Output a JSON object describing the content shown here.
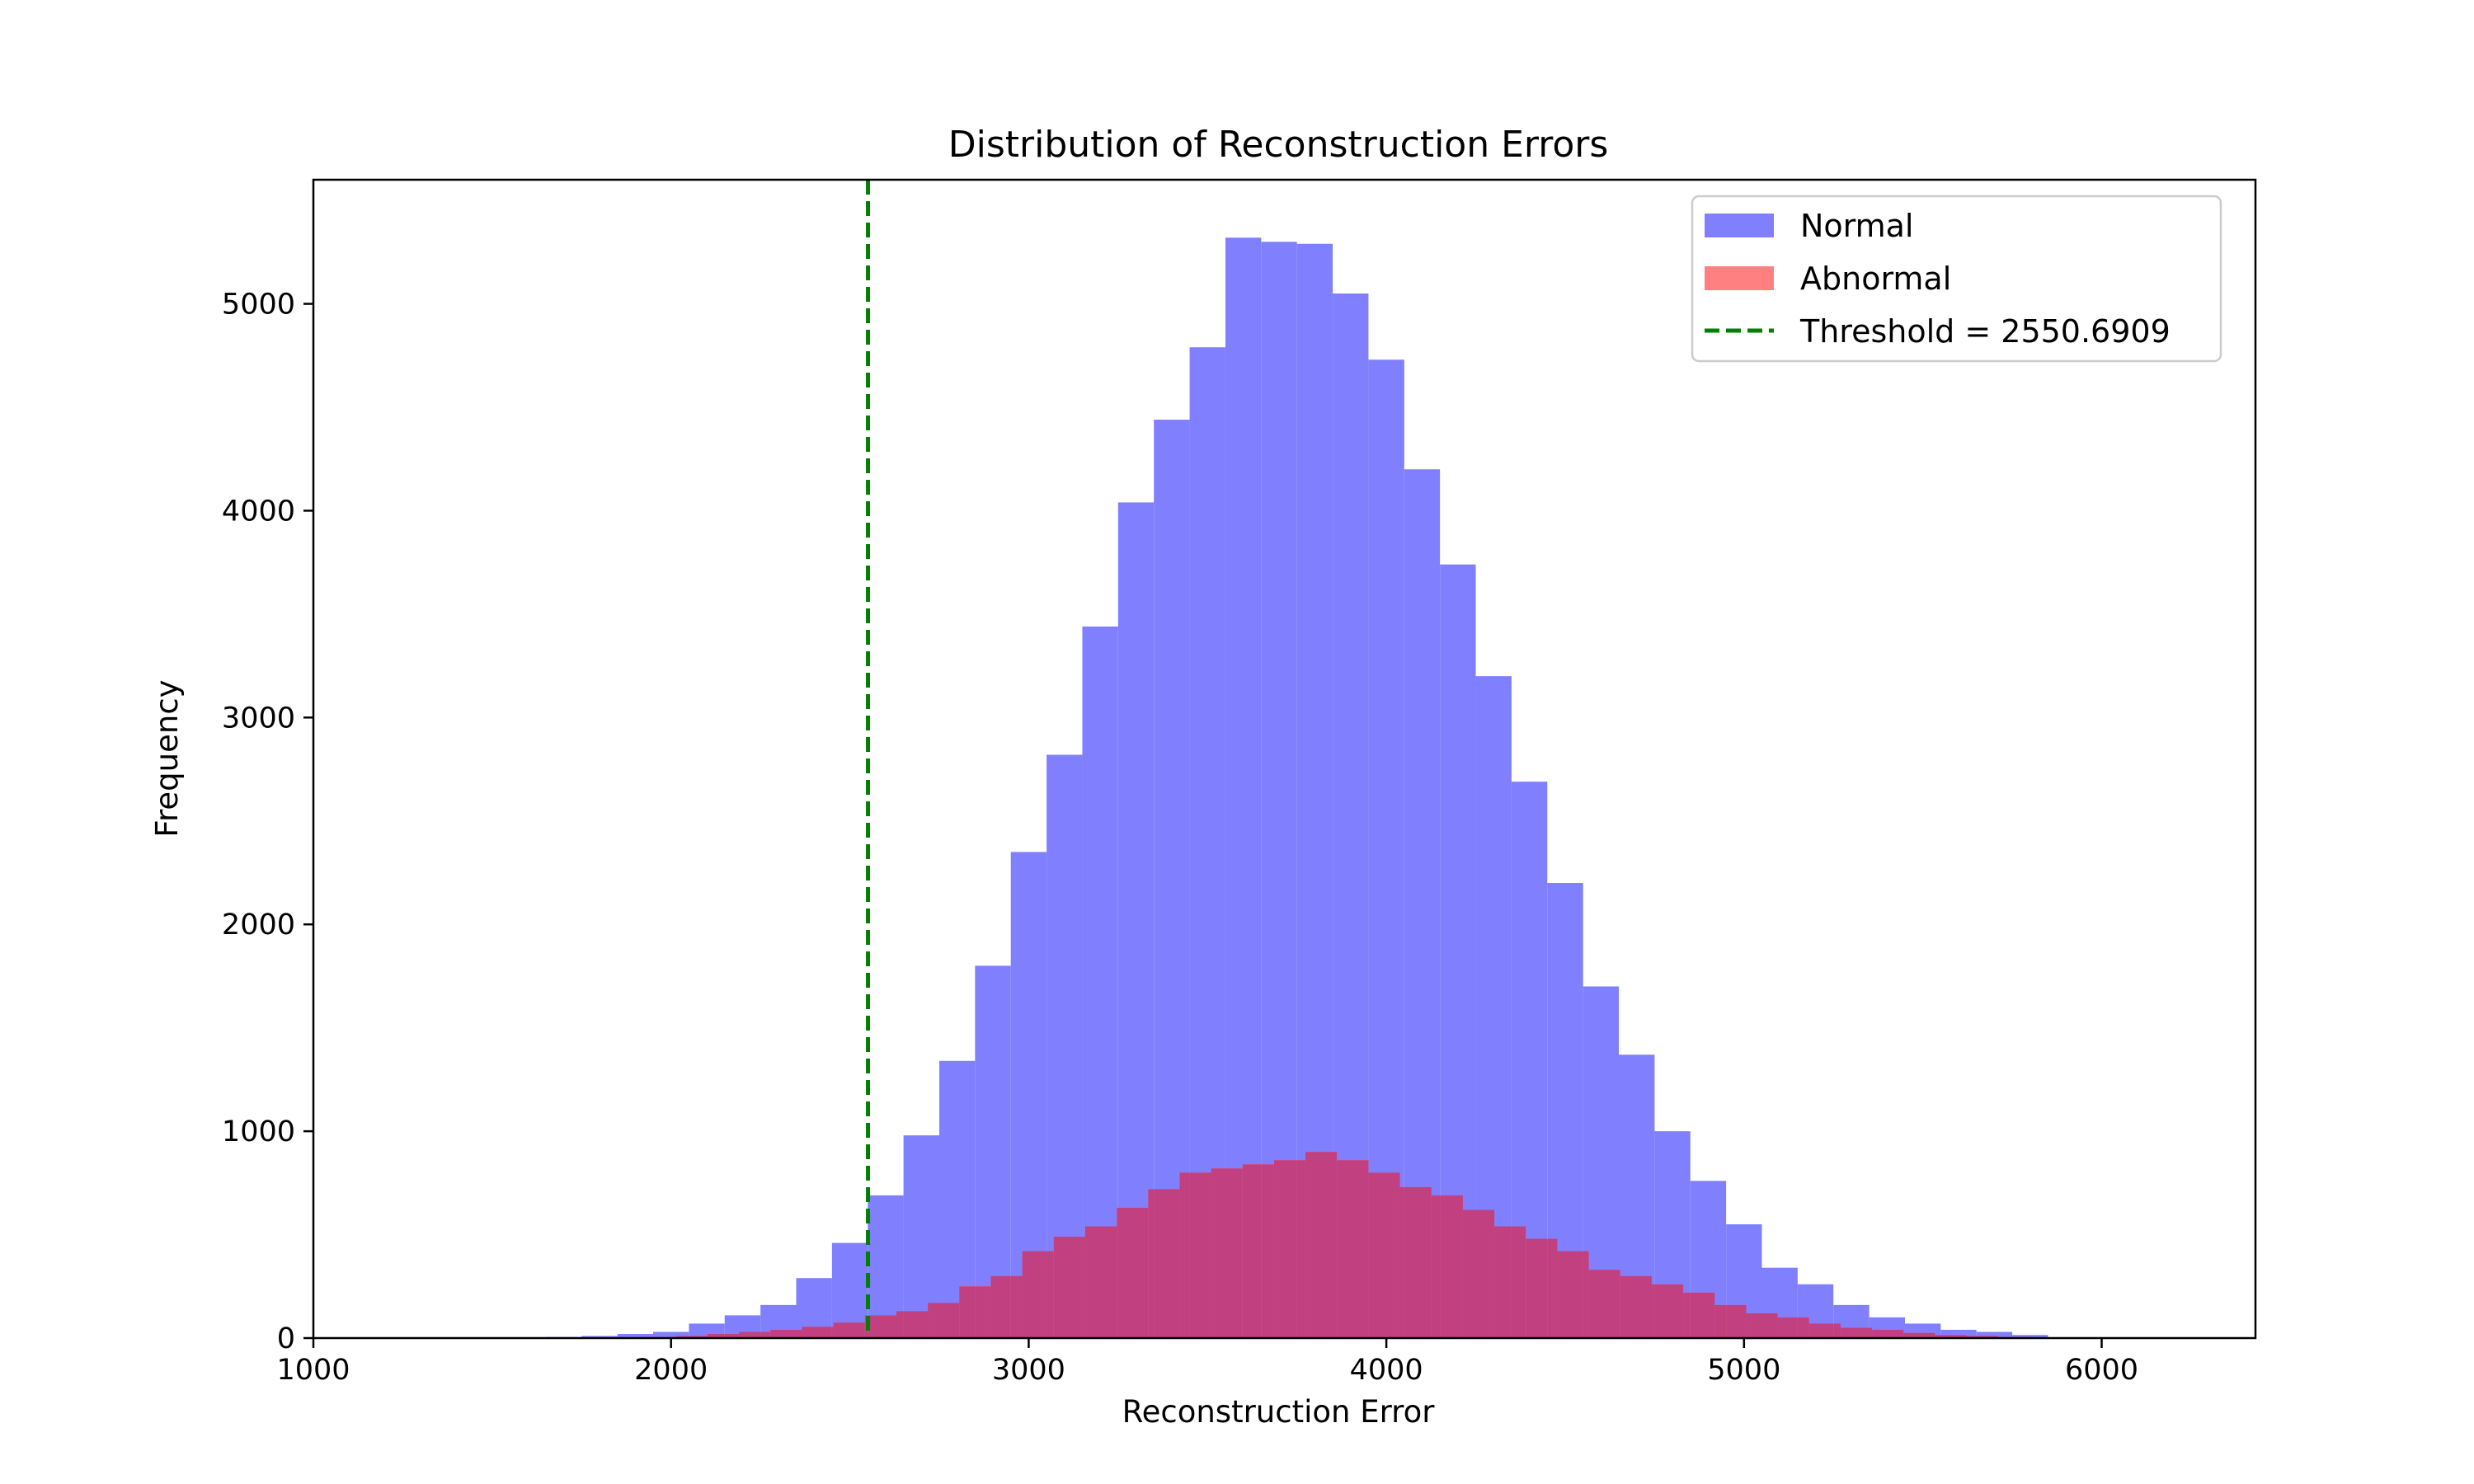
{
  "chart_data": {
    "type": "bar",
    "title": "Distribution of Reconstruction Errors",
    "xlabel": "Reconstruction Error",
    "ylabel": "Frequency",
    "xlim": [
      1000,
      6430
    ],
    "ylim": [
      0,
      5600
    ],
    "xticks": [
      1000,
      2000,
      3000,
      4000,
      5000,
      6000
    ],
    "yticks": [
      0,
      1000,
      2000,
      3000,
      4000,
      5000
    ],
    "grid": false,
    "legend_position": "top-right",
    "series": [
      {
        "name": "Normal",
        "color": "#8080ff",
        "bin_start": 1650,
        "bin_width": 100,
        "values": [
          5,
          10,
          20,
          30,
          70,
          110,
          160,
          290,
          460,
          690,
          980,
          1340,
          1800,
          2350,
          2820,
          3440,
          4040,
          4440,
          4790,
          5320,
          5300,
          5290,
          5050,
          4730,
          4200,
          3740,
          3200,
          2690,
          2200,
          1700,
          1370,
          1000,
          760,
          550,
          340,
          260,
          160,
          100,
          70,
          40,
          30,
          15
        ]
      },
      {
        "name": "Abnormal",
        "color": "#ff8080",
        "bin_start": 1750,
        "bin_width": 88,
        "values": [
          2,
          3,
          5,
          10,
          20,
          30,
          40,
          55,
          75,
          110,
          130,
          170,
          250,
          300,
          420,
          490,
          540,
          630,
          720,
          800,
          820,
          840,
          860,
          900,
          860,
          800,
          730,
          690,
          620,
          540,
          480,
          420,
          330,
          300,
          260,
          220,
          160,
          120,
          100,
          70,
          50,
          40,
          25,
          15,
          10,
          5
        ]
      }
    ],
    "threshold": {
      "label": "Threshold = 2550.6909",
      "value": 2550.6909,
      "color": "#008000",
      "style": "dashed"
    }
  }
}
